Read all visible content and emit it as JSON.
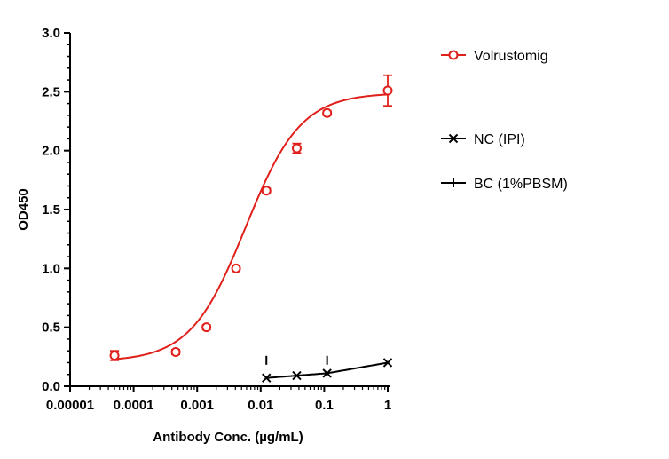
{
  "chart_data": {
    "type": "scatter",
    "xlabel": "Antibody Conc. (µg/mL)",
    "ylabel": "OD450",
    "xscale": "log",
    "xlim": [
      1e-05,
      1
    ],
    "ylim": [
      0,
      3.0
    ],
    "x_ticks": [
      "0.00001",
      "0.0001",
      "0.001",
      "0.01",
      "0.1",
      "1"
    ],
    "y_ticks": [
      "0.0",
      "0.5",
      "1.0",
      "1.5",
      "2.0",
      "2.5",
      "3.0"
    ],
    "legend_position": "right",
    "series": [
      {
        "name": "Volrustomig",
        "color": "#e0201b",
        "marker": "circle",
        "x": [
          5e-05,
          0.00046,
          0.0014,
          0.0041,
          0.0123,
          0.037,
          0.111,
          1
        ],
        "y": [
          0.26,
          0.29,
          0.5,
          1.0,
          1.66,
          2.02,
          2.32,
          2.51
        ],
        "err": [
          0.04,
          0.02,
          0.02,
          0.02,
          0.02,
          0.04,
          0.02,
          0.13
        ],
        "fit": {
          "bottom": 0.21,
          "top": 2.49,
          "ec50": 0.0058,
          "hill": 1.0
        }
      },
      {
        "name": "NC (IPI)",
        "color": "#000000",
        "marker": "x",
        "x": [
          0.0123,
          0.037,
          0.111,
          1
        ],
        "y": [
          0.07,
          0.09,
          0.11,
          0.2
        ]
      },
      {
        "name": "BC (1%PBSM)",
        "color": "#000000",
        "marker": "plus",
        "x": [
          0.0123,
          0.111
        ],
        "y": [
          0.22,
          0.22
        ]
      }
    ]
  }
}
